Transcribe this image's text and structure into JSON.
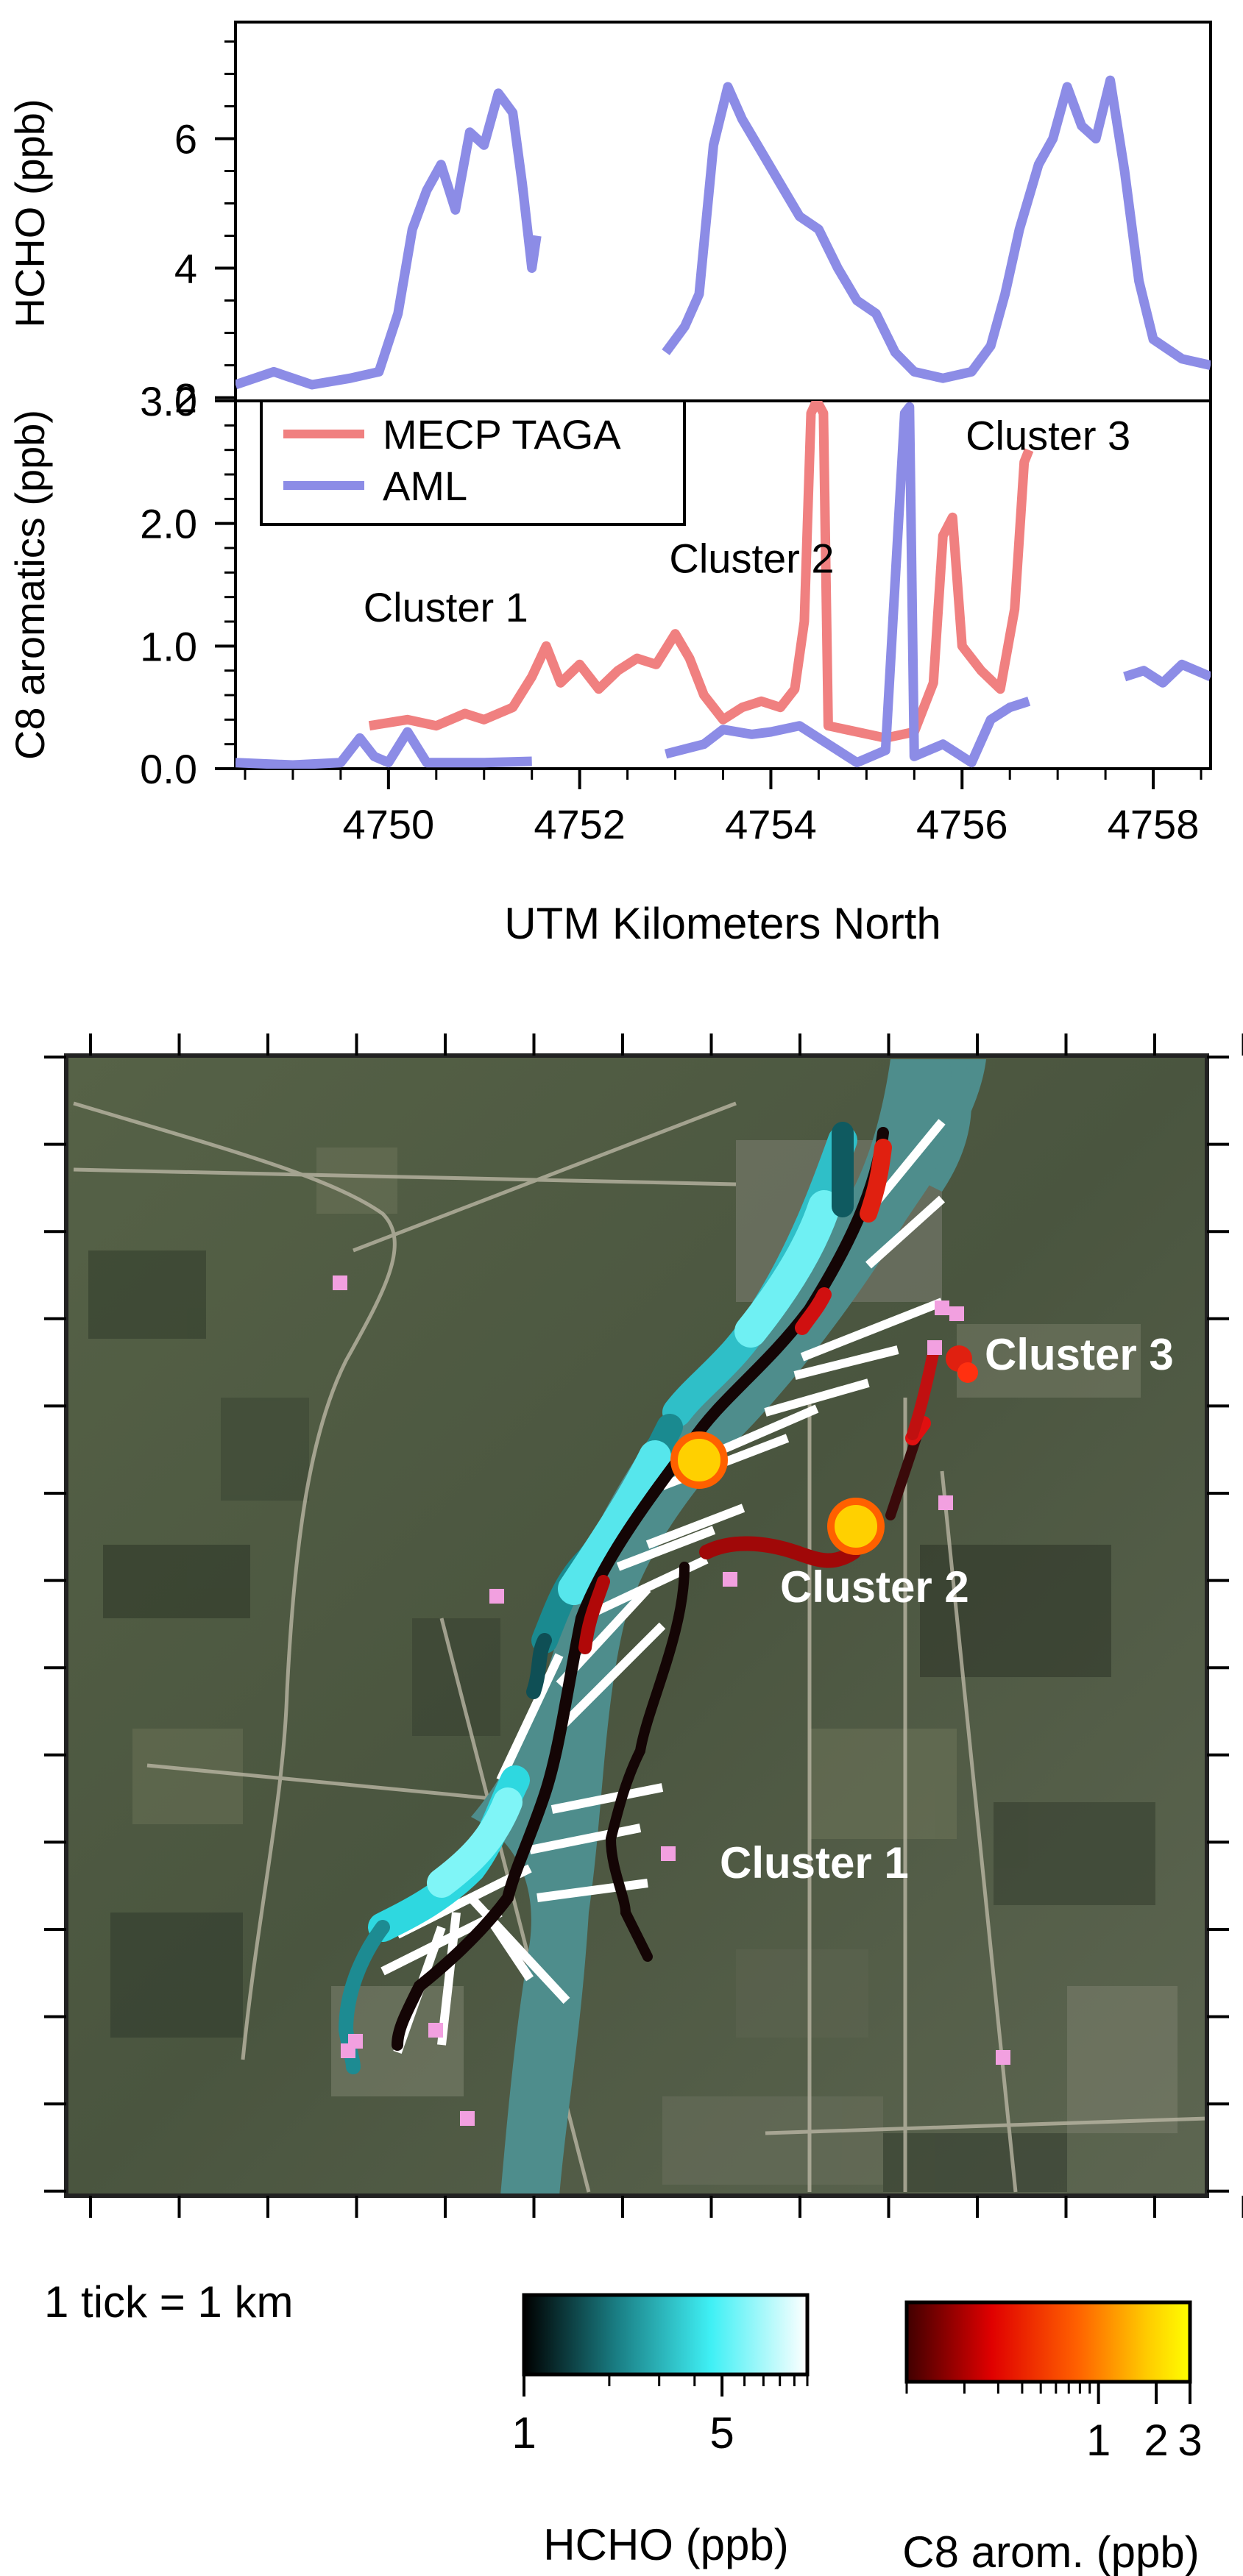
{
  "chart_data": [
    {
      "type": "line",
      "ylabel": "HCHO (ppb)",
      "xlim": [
        4748.4,
        4758.6
      ],
      "ylim": [
        1.95,
        7.8
      ],
      "yticks": [
        2,
        4,
        6
      ],
      "grid": false,
      "series": [
        {
          "name": "AML",
          "color": "#8c8ce6",
          "segments": [
            [
              [
                4748.4,
                2.2
              ],
              [
                4748.8,
                2.4
              ],
              [
                4749.2,
                2.2
              ],
              [
                4749.6,
                2.3
              ],
              [
                4749.9,
                2.4
              ],
              [
                4750.1,
                3.3
              ],
              [
                4750.25,
                4.6
              ],
              [
                4750.4,
                5.2
              ],
              [
                4750.55,
                5.6
              ],
              [
                4750.7,
                4.9
              ],
              [
                4750.85,
                6.1
              ],
              [
                4751.0,
                5.9
              ],
              [
                4751.15,
                6.7
              ],
              [
                4751.3,
                6.4
              ],
              [
                4751.4,
                5.3
              ],
              [
                4751.5,
                4.0
              ],
              [
                4751.55,
                4.5
              ]
            ],
            [
              [
                4752.9,
                2.7
              ],
              [
                4753.1,
                3.1
              ],
              [
                4753.25,
                3.6
              ],
              [
                4753.4,
                5.9
              ],
              [
                4753.55,
                6.8
              ],
              [
                4753.7,
                6.3
              ],
              [
                4753.9,
                5.8
              ],
              [
                4754.1,
                5.3
              ],
              [
                4754.3,
                4.8
              ],
              [
                4754.5,
                4.6
              ],
              [
                4754.7,
                4.0
              ],
              [
                4754.9,
                3.5
              ],
              [
                4755.1,
                3.3
              ],
              [
                4755.3,
                2.7
              ],
              [
                4755.5,
                2.4
              ],
              [
                4755.8,
                2.3
              ],
              [
                4756.1,
                2.4
              ],
              [
                4756.3,
                2.8
              ],
              [
                4756.45,
                3.6
              ],
              [
                4756.6,
                4.6
              ],
              [
                4756.8,
                5.6
              ],
              [
                4756.95,
                6.0
              ],
              [
                4757.1,
                6.8
              ],
              [
                4757.25,
                6.2
              ],
              [
                4757.4,
                6.0
              ],
              [
                4757.55,
                6.9
              ],
              [
                4757.7,
                5.5
              ],
              [
                4757.85,
                3.8
              ],
              [
                4758.0,
                2.9
              ],
              [
                4758.3,
                2.6
              ],
              [
                4758.6,
                2.5
              ]
            ]
          ]
        }
      ]
    },
    {
      "type": "line",
      "xlabel": "UTM Kilometers North",
      "ylabel": "C8 aromatics (ppb)",
      "xlim": [
        4748.4,
        4758.6
      ],
      "ylim": [
        0,
        3.0
      ],
      "xticks": [
        4750,
        4752,
        4754,
        4756,
        4758
      ],
      "yticks": [
        0.0,
        1.0,
        2.0,
        3.0
      ],
      "ytick_labels": [
        "0.0",
        "1.0",
        "2.0",
        "3.0"
      ],
      "legend": "top-left",
      "annotations": [
        {
          "text": "Cluster 1",
          "x": 4750.6,
          "y": 1.2
        },
        {
          "text": "Cluster 2",
          "x": 4753.8,
          "y": 1.6
        },
        {
          "text": "Cluster 3",
          "x": 4756.9,
          "y": 2.6
        }
      ],
      "series": [
        {
          "name": "MECP TAGA",
          "color": "#f08080",
          "segments": [
            [
              [
                4749.8,
                0.35
              ],
              [
                4750.2,
                0.4
              ],
              [
                4750.5,
                0.35
              ],
              [
                4750.8,
                0.45
              ],
              [
                4751.0,
                0.4
              ],
              [
                4751.3,
                0.5
              ],
              [
                4751.5,
                0.75
              ],
              [
                4751.65,
                1.0
              ],
              [
                4751.8,
                0.7
              ],
              [
                4752.0,
                0.85
              ],
              [
                4752.2,
                0.65
              ],
              [
                4752.4,
                0.8
              ],
              [
                4752.6,
                0.9
              ],
              [
                4752.8,
                0.85
              ],
              [
                4753.0,
                1.1
              ],
              [
                4753.15,
                0.9
              ],
              [
                4753.3,
                0.6
              ],
              [
                4753.5,
                0.4
              ],
              [
                4753.7,
                0.5
              ],
              [
                4753.9,
                0.55
              ],
              [
                4754.1,
                0.5
              ],
              [
                4754.25,
                0.65
              ],
              [
                4754.35,
                1.2
              ],
              [
                4754.42,
                2.9
              ],
              [
                4754.48,
                3.0
              ],
              [
                4754.55,
                2.9
              ],
              [
                4754.6,
                0.35
              ],
              [
                4754.9,
                0.3
              ],
              [
                4755.2,
                0.25
              ],
              [
                4755.5,
                0.3
              ],
              [
                4755.7,
                0.7
              ],
              [
                4755.8,
                1.9
              ],
              [
                4755.9,
                2.05
              ],
              [
                4756.0,
                1.0
              ],
              [
                4756.2,
                0.8
              ],
              [
                4756.4,
                0.65
              ],
              [
                4756.55,
                1.3
              ],
              [
                4756.65,
                2.5
              ],
              [
                4756.7,
                2.6
              ]
            ]
          ]
        },
        {
          "name": "AML",
          "color": "#8c8ce6",
          "segments": [
            [
              [
                4748.4,
                0.05
              ],
              [
                4749.0,
                0.03
              ],
              [
                4749.5,
                0.05
              ],
              [
                4749.7,
                0.25
              ],
              [
                4749.85,
                0.1
              ],
              [
                4750.0,
                0.05
              ],
              [
                4750.2,
                0.3
              ],
              [
                4750.4,
                0.05
              ],
              [
                4751.0,
                0.05
              ],
              [
                4751.5,
                0.06
              ]
            ],
            [
              [
                4752.9,
                0.12
              ],
              [
                4753.3,
                0.2
              ],
              [
                4753.5,
                0.32
              ],
              [
                4753.8,
                0.28
              ],
              [
                4754.0,
                0.3
              ],
              [
                4754.3,
                0.35
              ],
              [
                4754.6,
                0.2
              ],
              [
                4754.9,
                0.05
              ],
              [
                4755.2,
                0.15
              ],
              [
                4755.4,
                2.9
              ],
              [
                4755.45,
                2.95
              ],
              [
                4755.5,
                0.1
              ],
              [
                4755.8,
                0.2
              ],
              [
                4756.1,
                0.05
              ],
              [
                4756.3,
                0.4
              ],
              [
                4756.5,
                0.5
              ],
              [
                4756.7,
                0.55
              ]
            ],
            [
              [
                4757.7,
                0.75
              ],
              [
                4757.9,
                0.8
              ],
              [
                4758.1,
                0.7
              ],
              [
                4758.3,
                0.85
              ],
              [
                4758.6,
                0.75
              ]
            ]
          ]
        }
      ]
    }
  ],
  "map": {
    "scale_note": "1 tick = 1 km",
    "labels": [
      "Cluster 3",
      "Cluster 2",
      "Cluster 1"
    ],
    "colorbars": [
      {
        "label": "HCHO (ppb)",
        "tick_labels": [
          "1",
          "5"
        ],
        "tick_values": [
          1,
          5
        ],
        "range": [
          1,
          10
        ],
        "scale": "log",
        "stops": [
          "#000000",
          "#1a7f85",
          "#3ff0f5",
          "#ffffff"
        ]
      },
      {
        "label": "C8 arom. (ppb)",
        "tick_labels": [
          "1",
          "2",
          "3"
        ],
        "tick_values": [
          1,
          2,
          3
        ],
        "range": [
          0.1,
          3
        ],
        "scale": "log",
        "stops": [
          "#400000",
          "#e00000",
          "#ff6000",
          "#ffcc00",
          "#ffff00"
        ]
      }
    ],
    "colors": {
      "river": "#4e8d8c",
      "land": "#4f5a44",
      "plume_tracks": "#ffffff",
      "monitors": "#f2a0e0"
    }
  }
}
